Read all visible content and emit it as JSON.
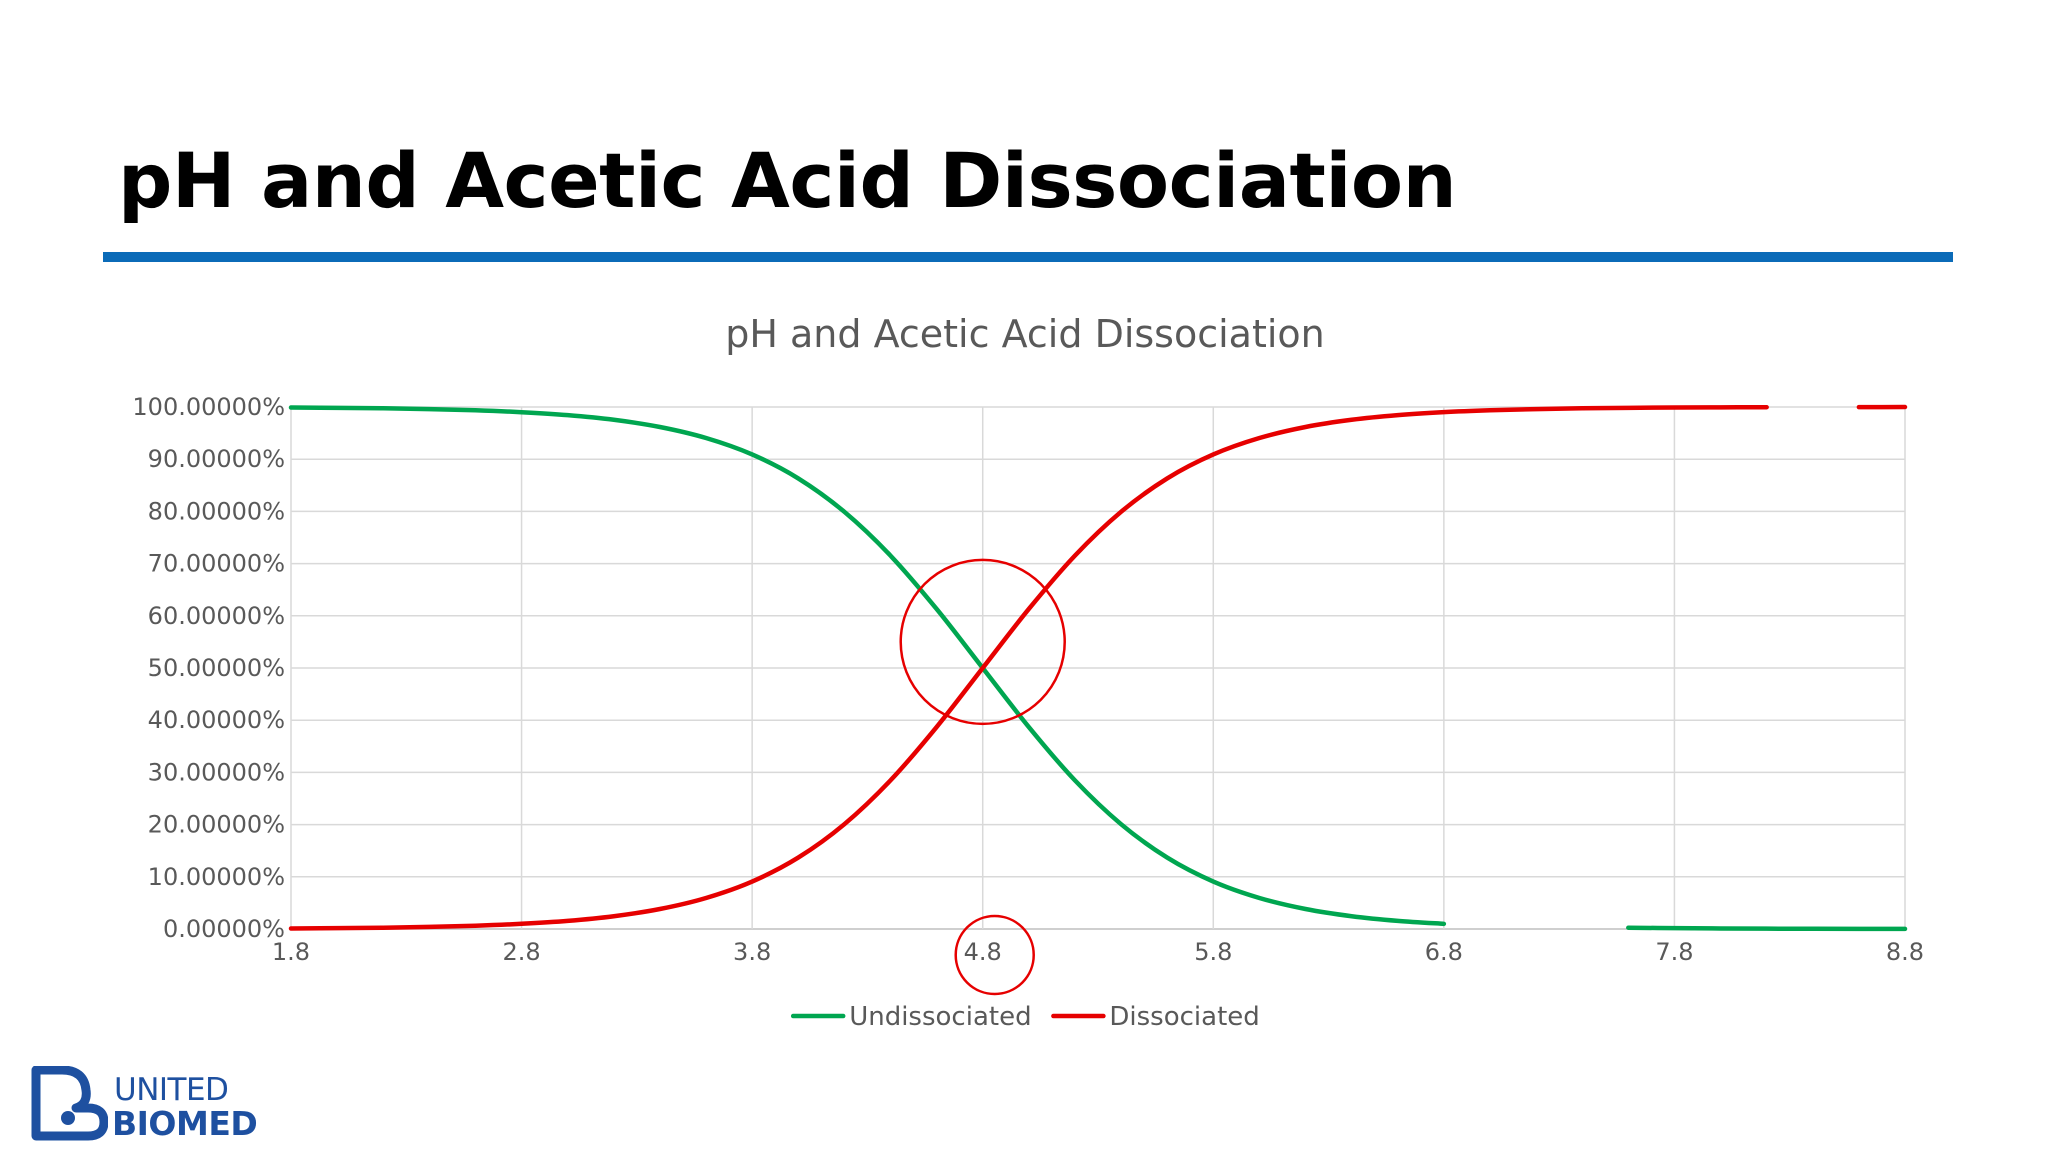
{
  "slide": {
    "title": "pH and Acetic Acid Dissociation",
    "accent_color": "#0b6bb8"
  },
  "chart_data": {
    "type": "line",
    "title": "pH and Acetic Acid Dissociation",
    "xlabel": "",
    "ylabel": "",
    "x_ticks": [
      "1.8",
      "2.8",
      "3.8",
      "4.8",
      "5.8",
      "6.8",
      "7.8",
      "8.8"
    ],
    "y_ticks": [
      "0.00000%",
      "10.00000%",
      "20.00000%",
      "30.00000%",
      "40.00000%",
      "50.00000%",
      "60.00000%",
      "70.00000%",
      "80.00000%",
      "90.00000%",
      "100.00000%"
    ],
    "xlim": [
      1.8,
      8.8
    ],
    "ylim": [
      0,
      100
    ],
    "grid": true,
    "legend_position": "bottom",
    "pKa": 4.8,
    "x": [
      1.8,
      2.0,
      2.2,
      2.4,
      2.6,
      2.8,
      3.0,
      3.2,
      3.4,
      3.6,
      3.8,
      4.0,
      4.2,
      4.4,
      4.6,
      4.8,
      5.0,
      5.2,
      5.4,
      5.6,
      5.8,
      6.0,
      6.2,
      6.4,
      6.6,
      6.8,
      7.0,
      7.2,
      7.4,
      7.6,
      7.8,
      8.0,
      8.2,
      8.4,
      8.6,
      8.8
    ],
    "series": [
      {
        "name": "Undissociated",
        "color": "#00a650",
        "values": [
          99.9,
          99.84,
          99.75,
          99.6,
          99.37,
          99.0,
          98.44,
          97.55,
          96.17,
          94.06,
          90.91,
          86.32,
          79.92,
          71.53,
          61.31,
          50.0,
          38.69,
          28.47,
          20.08,
          13.68,
          9.09,
          5.94,
          3.83,
          2.45,
          1.56,
          0.99,
          null,
          null,
          null,
          0.25,
          0.16,
          0.1,
          0.06,
          0.04,
          0.03,
          0.02
        ]
      },
      {
        "name": "Dissociated",
        "color": "#e60000",
        "values": [
          0.1,
          0.16,
          0.25,
          0.4,
          0.63,
          1.0,
          1.56,
          2.45,
          3.83,
          5.94,
          9.09,
          13.68,
          20.08,
          28.47,
          38.69,
          50.0,
          61.31,
          71.53,
          79.92,
          86.32,
          90.91,
          94.06,
          96.17,
          97.55,
          98.44,
          99.01,
          99.37,
          99.6,
          99.75,
          99.84,
          99.9,
          99.94,
          99.96,
          null,
          99.98,
          99.99
        ]
      }
    ],
    "annotations": [
      {
        "shape": "circle",
        "around": "curve-intersection",
        "x": 4.8,
        "y": 55,
        "color": "#e60000"
      },
      {
        "shape": "circle",
        "around": "x-tick-label",
        "label": "4.8",
        "color": "#e60000"
      }
    ]
  },
  "logo": {
    "line1": "UNITED",
    "line2": "BIOMED",
    "color": "#1e50a0"
  }
}
